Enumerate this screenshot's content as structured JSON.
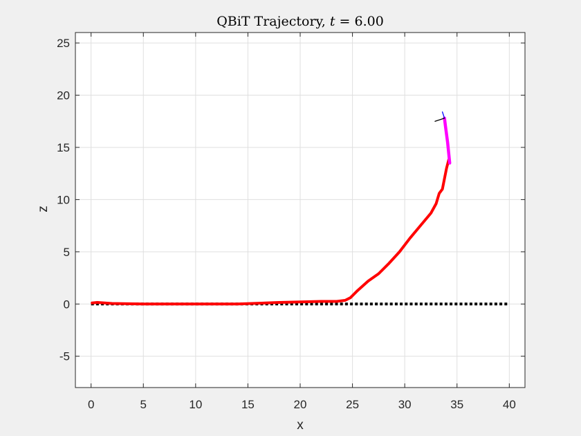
{
  "chart_data": {
    "type": "line",
    "title": "QBiT Trajectory, t = 6.00",
    "title_parts": {
      "prefix": "QBiT Trajectory, ",
      "var": "t",
      "suffix": " = 6.00"
    },
    "xlabel": "x",
    "ylabel": "z",
    "xlim": [
      -1.5,
      41.5
    ],
    "ylim": [
      -8,
      26
    ],
    "xticks": [
      0,
      5,
      10,
      15,
      20,
      25,
      30,
      35,
      40
    ],
    "yticks": [
      -5,
      0,
      5,
      10,
      15,
      20,
      25
    ],
    "xtick_labels": [
      "0",
      "5",
      "10",
      "15",
      "20",
      "25",
      "30",
      "35",
      "40"
    ],
    "ytick_labels": [
      "-5",
      "0",
      "5",
      "10",
      "15",
      "20",
      "25"
    ],
    "grid": true,
    "series": [
      {
        "role": "reference",
        "color": "#000000",
        "style": "dotted",
        "x": [
          0,
          40
        ],
        "y": [
          0,
          0
        ]
      },
      {
        "role": "trajectory",
        "color": "#ff0000",
        "style": "solid",
        "x": [
          0.1,
          0.6,
          2,
          5,
          10,
          14,
          18,
          22,
          23.5,
          24.3,
          24.8,
          25.5,
          26.5,
          27.5,
          28.5,
          29.5,
          30.5,
          31.5,
          32.5,
          33.0,
          33.3,
          33.6,
          33.8,
          34.0,
          34.2
        ],
        "y": [
          0.1,
          0.15,
          0.05,
          0.0,
          0.0,
          0.0,
          0.15,
          0.25,
          0.25,
          0.35,
          0.6,
          1.3,
          2.2,
          2.9,
          3.9,
          5.0,
          6.3,
          7.5,
          8.7,
          9.6,
          10.6,
          11.0,
          12.0,
          13.0,
          13.8
        ]
      },
      {
        "role": "recent-path",
        "color": "#ff00ff",
        "style": "solid",
        "x": [
          34.3,
          34.1,
          33.9,
          33.8
        ],
        "y": [
          13.5,
          15.5,
          17.0,
          17.8
        ]
      },
      {
        "role": "attitude-axis-1",
        "color": "#0000ff",
        "style": "solid",
        "x": [
          33.6,
          33.8
        ],
        "y": [
          18.4,
          17.8
        ]
      },
      {
        "role": "attitude-axis-2",
        "color": "#000000",
        "style": "solid",
        "x": [
          32.9,
          33.8
        ],
        "y": [
          17.5,
          17.8
        ]
      }
    ]
  }
}
